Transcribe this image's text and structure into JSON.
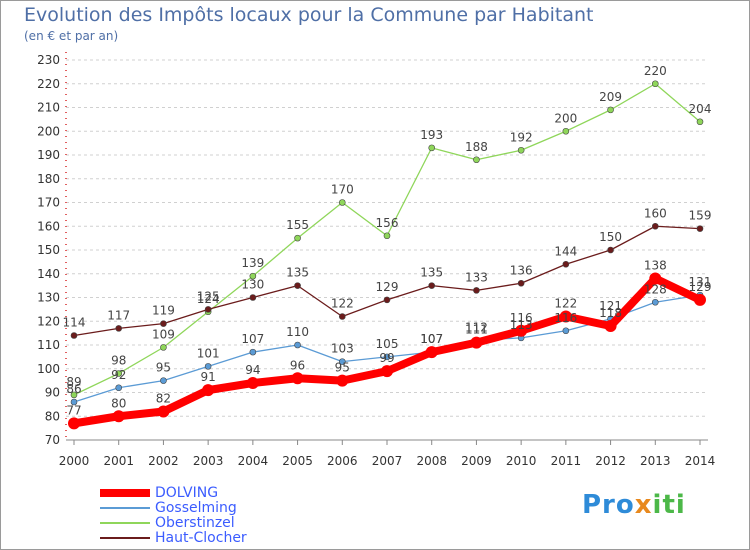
{
  "chart_data": {
    "type": "line",
    "title": "Evolution des Impôts locaux pour la Commune par Habitant",
    "subtitle": "(en € et par an)",
    "categories": [
      "2000",
      "2001",
      "2002",
      "2003",
      "2004",
      "2005",
      "2006",
      "2007",
      "2008",
      "2009",
      "2010",
      "2011",
      "2012",
      "2013",
      "2014"
    ],
    "ylim": [
      70,
      230
    ],
    "ytick_step": 10,
    "grid": "horizontal dashed",
    "legend_position": "bottom-left",
    "series": [
      {
        "name": "DOLVING",
        "color": "#ff0000",
        "values": [
          77,
          80,
          82,
          91,
          94,
          96,
          95,
          99,
          107,
          111,
          116,
          122,
          118,
          138,
          129
        ]
      },
      {
        "name": "Gosselming",
        "color": "#5b9bd5",
        "values": [
          86,
          92,
          95,
          101,
          107,
          110,
          103,
          105,
          107,
          112,
          113,
          116,
          121,
          128,
          131
        ]
      },
      {
        "name": "Oberstinzel",
        "color": "#8fd65a",
        "values": [
          89,
          98,
          109,
          124,
          139,
          155,
          170,
          156,
          193,
          188,
          192,
          200,
          209,
          220,
          204
        ]
      },
      {
        "name": "Haut-Clocher",
        "color": "#6b1c1c",
        "values": [
          114,
          117,
          119,
          125,
          130,
          135,
          122,
          129,
          135,
          133,
          136,
          144,
          150,
          160,
          159
        ]
      }
    ]
  },
  "logo": {
    "p1": "Pro",
    "p2": "x",
    "p3": "iti"
  }
}
